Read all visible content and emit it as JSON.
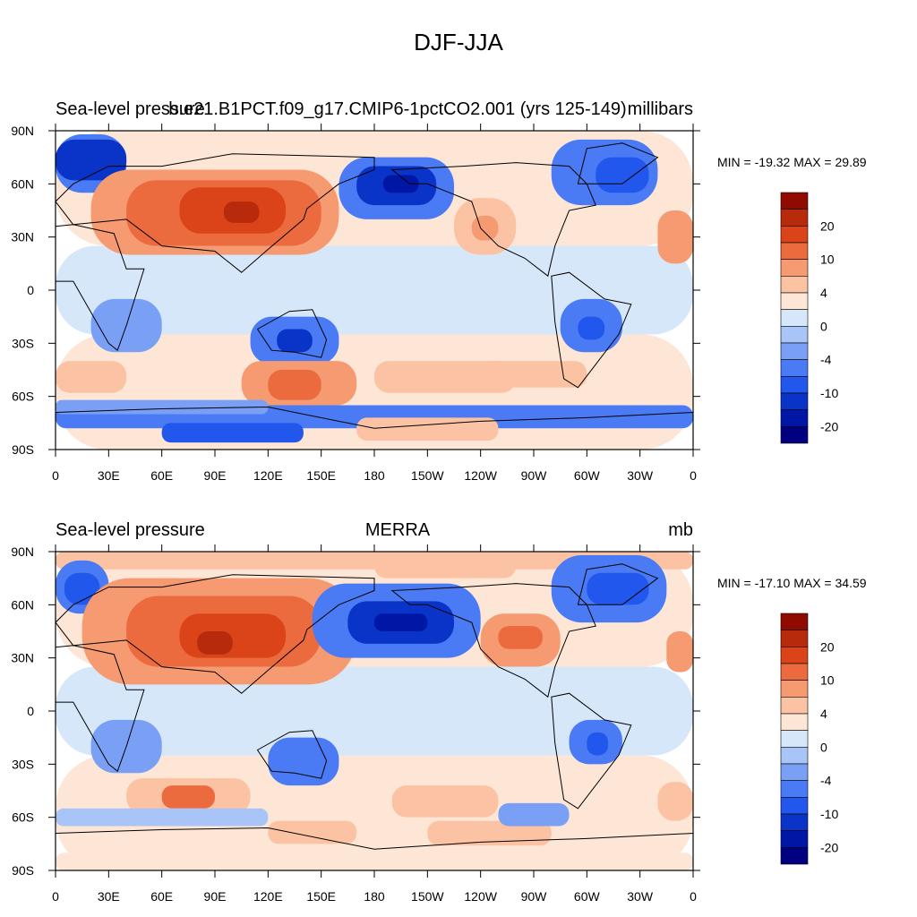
{
  "main_title": "DJF-JJA",
  "colors": {
    "contours": [
      "#000080",
      "#0017a6",
      "#0a34c8",
      "#2157ec",
      "#4a7bf5",
      "#7aa0f6",
      "#a9c4f6",
      "#d7e7fa",
      "#fde6d6",
      "#fbc3a3",
      "#f59a71",
      "#ec6b3e",
      "#db4419",
      "#b82a0c",
      "#900a00"
    ],
    "coastline": "#000000",
    "frame": "#000000"
  },
  "colorbar": {
    "labels": [
      "20",
      "10",
      "4",
      "0",
      "-4",
      "-10",
      "-20"
    ]
  },
  "chart_data": [
    {
      "type": "heatmap",
      "panel": "model",
      "left_title": "Sea-level pressure",
      "center_title": "b.e21.B1PCT.f09_g17.CMIP6-1pctCO2.001 (yrs 125-149)",
      "right_title": "millibars",
      "minmax_text": "MIN = -19.32 MAX =  29.89",
      "min": -19.32,
      "max": 29.89,
      "x_tick_labels": [
        "0",
        "30E",
        "60E",
        "90E",
        "120E",
        "150E",
        "180",
        "150W",
        "120W",
        "90W",
        "60W",
        "30W",
        "0"
      ],
      "y_tick_labels": [
        "90N",
        "60N",
        "30N",
        "0",
        "30S",
        "60S",
        "90S"
      ],
      "xlim": [
        0,
        360
      ],
      "ylim": [
        -90,
        90
      ],
      "contour_levels": [
        -20,
        -15,
        -10,
        -6,
        -4,
        -2,
        0,
        2,
        4,
        6,
        10,
        15,
        20,
        25
      ]
    },
    {
      "type": "heatmap",
      "panel": "obs",
      "left_title": "Sea-level pressure",
      "center_title": "MERRA",
      "right_title": "mb",
      "minmax_text": "MIN = -17.10 MAX =  34.59",
      "min": -17.1,
      "max": 34.59,
      "x_tick_labels": [
        "0",
        "30E",
        "60E",
        "90E",
        "120E",
        "150E",
        "180",
        "150W",
        "120W",
        "90W",
        "60W",
        "30W",
        "0"
      ],
      "y_tick_labels": [
        "90N",
        "60N",
        "30N",
        "0",
        "30S",
        "60S",
        "90S"
      ],
      "xlim": [
        0,
        360
      ],
      "ylim": [
        -90,
        90
      ],
      "contour_levels": [
        -20,
        -15,
        -10,
        -6,
        -4,
        -2,
        0,
        2,
        4,
        6,
        10,
        15,
        20,
        25
      ]
    }
  ]
}
